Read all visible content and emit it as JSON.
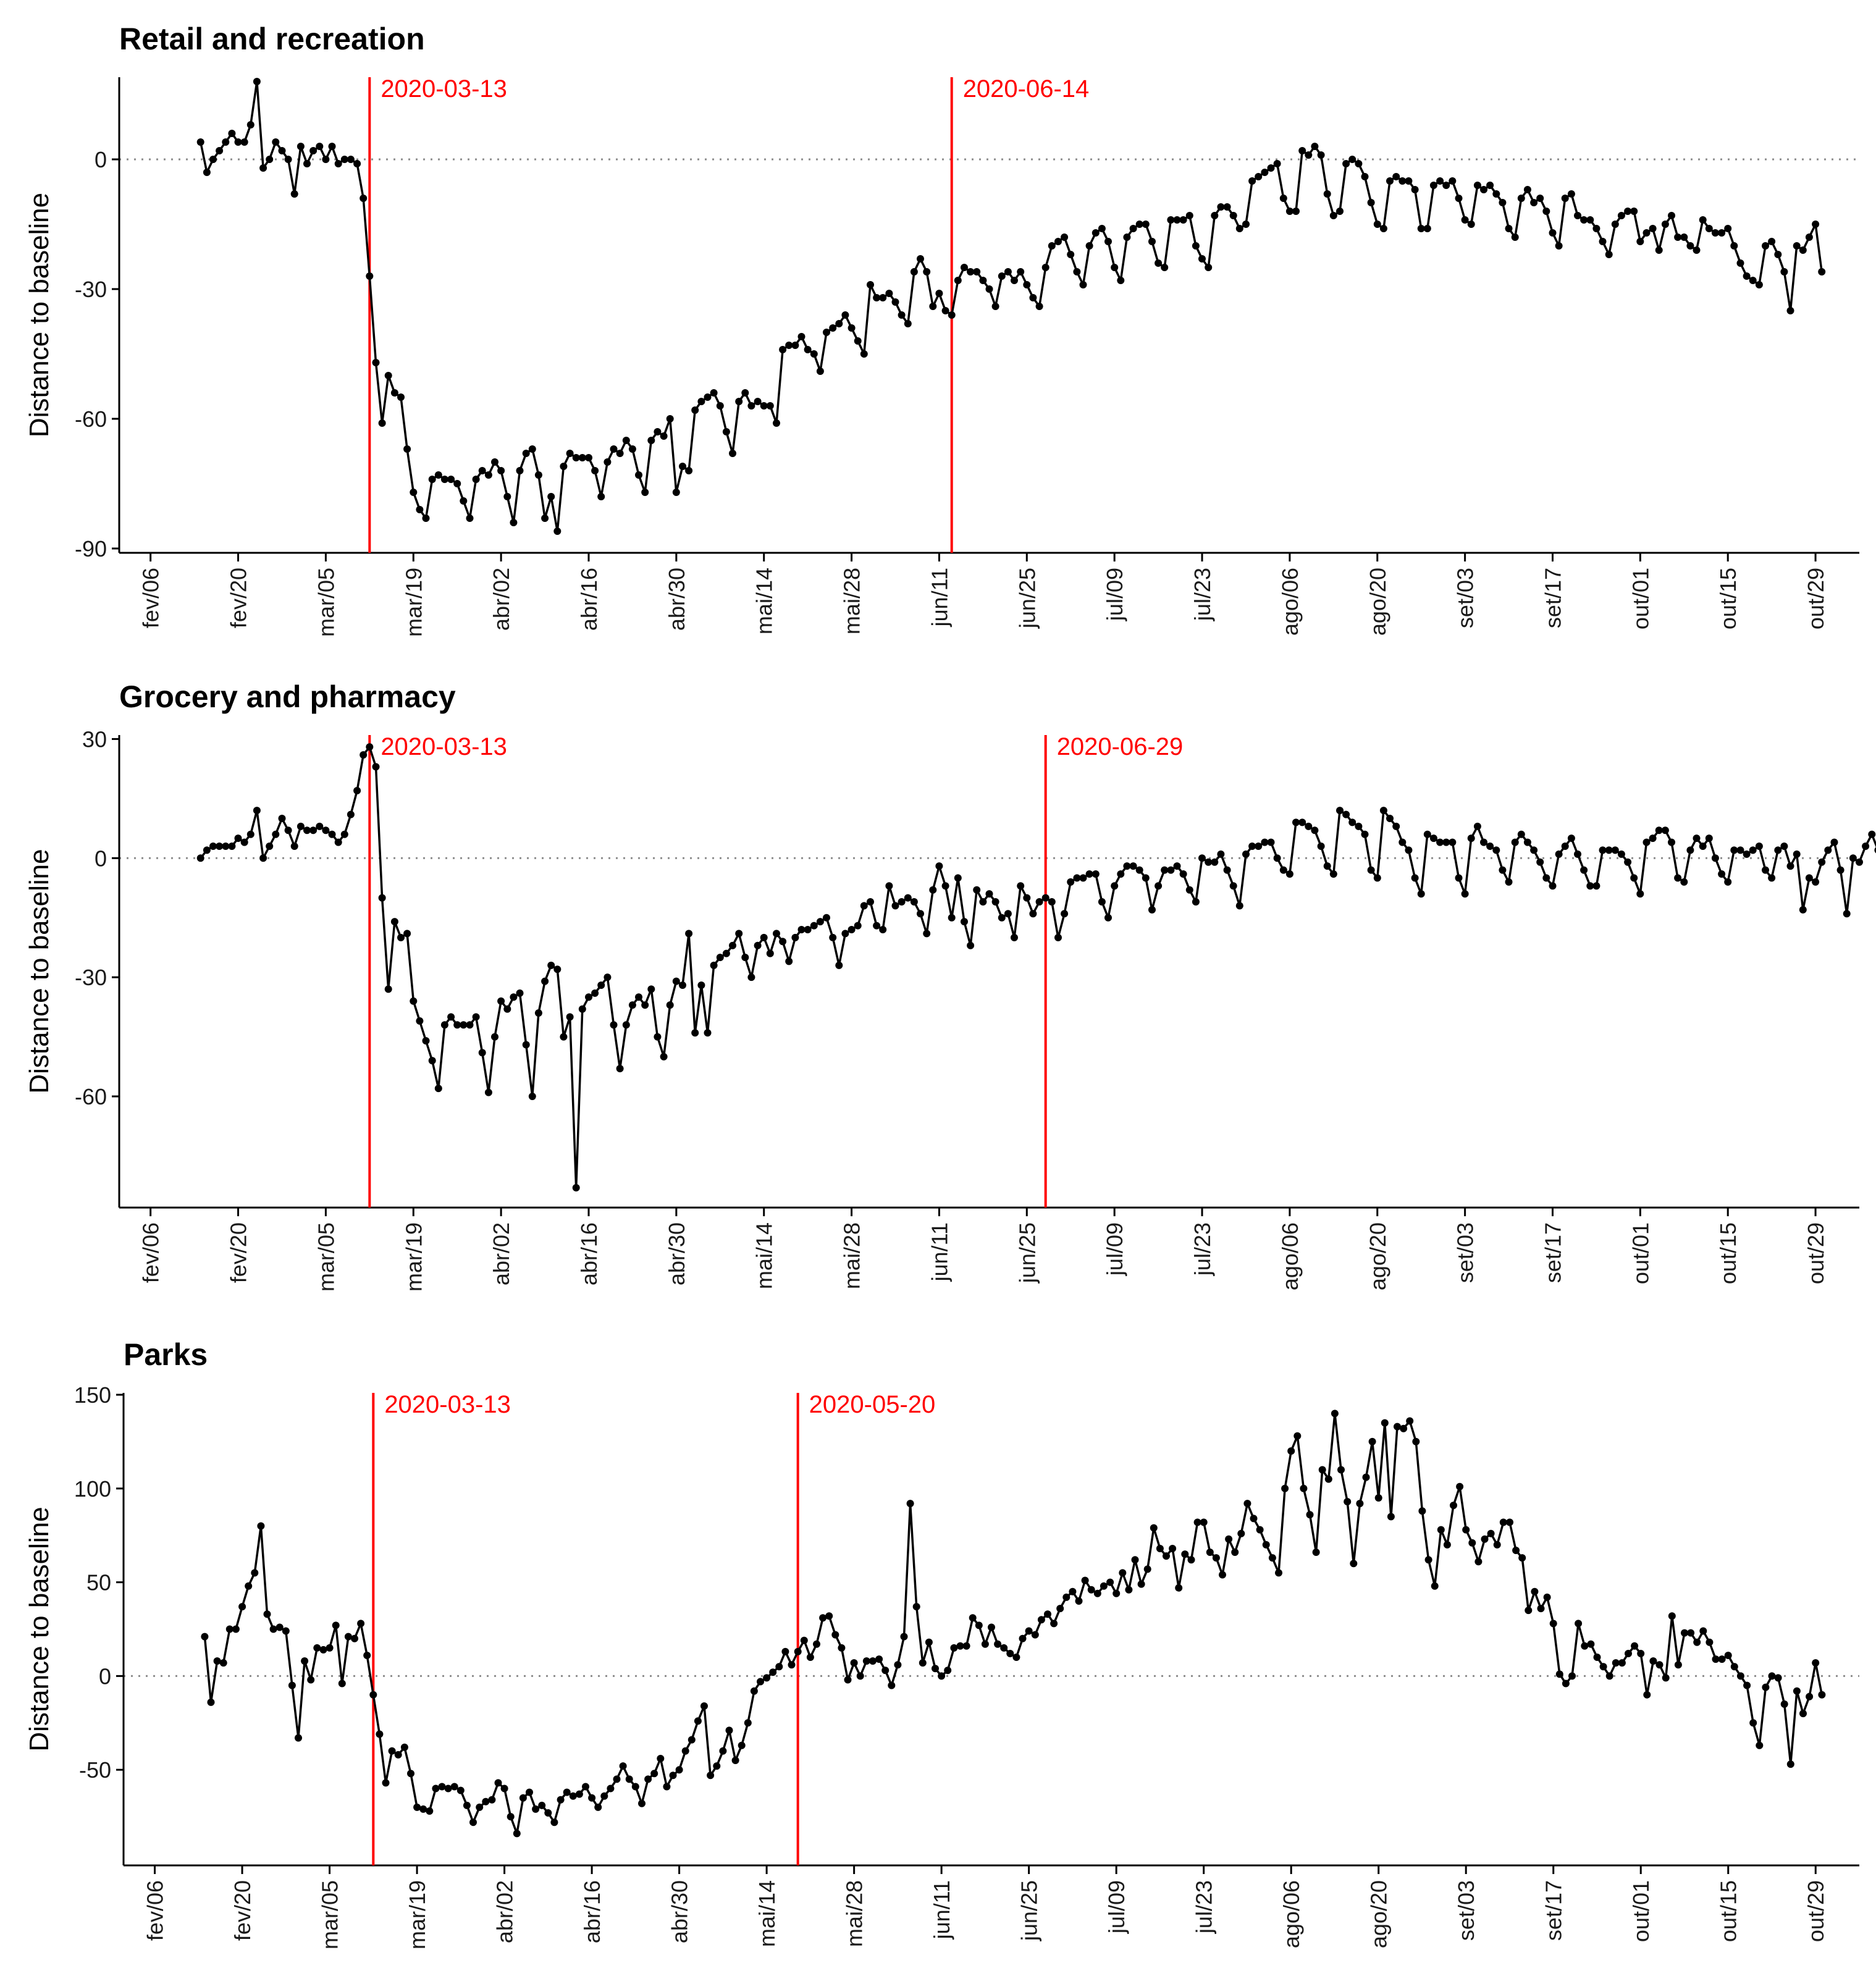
{
  "figure": {
    "colors": {
      "line": "#000000",
      "event": "#ff0000",
      "axis": "#000000",
      "zero_line": "#8c8c8c"
    }
  },
  "chart_data": [
    {
      "type": "line",
      "title": "Retail and recreation",
      "xlabel": "",
      "ylabel": "Distance to baseline",
      "x_start": "2020-02-15",
      "xlim_days": [
        -13,
        265
      ],
      "ylim": [
        -91,
        19
      ],
      "yticks": [
        0,
        -30,
        -60,
        -90
      ],
      "ytick_labels": [
        "0",
        "-30",
        "-60",
        "-90"
      ],
      "xtick_days": [
        -8,
        6,
        20,
        34,
        48,
        62,
        76,
        90,
        104,
        118,
        132,
        146,
        160,
        174,
        188,
        202,
        216,
        230,
        244,
        258
      ],
      "xtick_labels": [
        "fev/06",
        "fev/20",
        "mar/05",
        "mar/19",
        "abr/02",
        "abr/16",
        "abr/30",
        "mai/14",
        "mai/28",
        "jun/11",
        "jun/25",
        "jul/09",
        "jul/23",
        "ago/06",
        "ago/20",
        "set/03",
        "set/17",
        "out/01",
        "out/15",
        "out/29"
      ],
      "events": [
        {
          "day": 27,
          "label": "2020-03-13"
        },
        {
          "day": 120,
          "label": "2020-06-14"
        }
      ],
      "values": [
        4,
        -3,
        0,
        2,
        4,
        6,
        4,
        4,
        8,
        18,
        -2,
        0,
        4,
        2,
        0,
        -8,
        3,
        -1,
        2,
        3,
        0,
        3,
        -1,
        0,
        0,
        -1,
        -9,
        -27,
        -47,
        -61,
        -50,
        -54,
        -55,
        -67,
        -77,
        -81,
        -83,
        -74,
        -73,
        -74,
        -74,
        -75,
        -79,
        -83,
        -74,
        -72,
        -73,
        -70,
        -72,
        -78,
        -84,
        -72,
        -68,
        -67,
        -73,
        -83,
        -78,
        -86,
        -71,
        -68,
        -69,
        -69,
        -69,
        -72,
        -78,
        -70,
        -67,
        -68,
        -65,
        -67,
        -73,
        -77,
        -65,
        -63,
        -64,
        -60,
        -77,
        -71,
        -72,
        -58,
        -56,
        -55,
        -54,
        -57,
        -63,
        -68,
        -56,
        -54,
        -57,
        -56,
        -57,
        -57,
        -61,
        -44,
        -43,
        -43,
        -41,
        -44,
        -45,
        -49,
        -40,
        -39,
        -38,
        -36,
        -39,
        -42,
        -45,
        -29,
        -32,
        -32,
        -31,
        -33,
        -36,
        -38,
        -26,
        -23,
        -26,
        -34,
        -31,
        -35,
        -36,
        -28,
        -25,
        -26,
        -26,
        -28,
        -30,
        -34,
        -27,
        -26,
        -28,
        -26,
        -29,
        -32,
        -34,
        -25,
        -20,
        -19,
        -18,
        -22,
        -26,
        -29,
        -20,
        -17,
        -16,
        -19,
        -25,
        -28,
        -18,
        -16,
        -15,
        -15,
        -19,
        -24,
        -25,
        -14,
        -14,
        -14,
        -13,
        -20,
        -23,
        -25,
        -13,
        -11,
        -11,
        -13,
        -16,
        -15,
        -5,
        -4,
        -3,
        -2,
        -1,
        -9,
        -12,
        -12,
        2,
        1,
        3,
        1,
        -8,
        -13,
        -12,
        -1,
        0,
        -1,
        -4,
        -10,
        -15,
        -16,
        -5,
        -4,
        -5,
        -5,
        -7,
        -16,
        -16,
        -6,
        -5,
        -6,
        -5,
        -9,
        -14,
        -15,
        -6,
        -7,
        -6,
        -8,
        -10,
        -16,
        -18,
        -9,
        -7,
        -10,
        -9,
        -12,
        -17,
        -20,
        -9,
        -8,
        -13,
        -14,
        -14,
        -16,
        -19,
        -22,
        -15,
        -13,
        -12,
        -12,
        -19,
        -17,
        -16,
        -21,
        -15,
        -13,
        -18,
        -18,
        -20,
        -21,
        -14,
        -16,
        -17,
        -17,
        -16,
        -20,
        -24,
        -27,
        -28,
        -29,
        -20,
        -19,
        -22,
        -26,
        -35,
        -20,
        -21,
        -18,
        -15,
        -26
      ]
    },
    {
      "type": "line",
      "title": "Grocery and pharmacy",
      "xlabel": "",
      "ylabel": "Distance to baseline",
      "x_start": "2020-02-15",
      "xlim_days": [
        -13,
        265
      ],
      "ylim": [
        -88,
        31
      ],
      "yticks": [
        30,
        0,
        -30,
        -60
      ],
      "ytick_labels": [
        "30",
        "0",
        "-30",
        "-60"
      ],
      "xtick_days": [
        -8,
        6,
        20,
        34,
        48,
        62,
        76,
        90,
        104,
        118,
        132,
        146,
        160,
        174,
        188,
        202,
        216,
        230,
        244,
        258
      ],
      "xtick_labels": [
        "fev/06",
        "fev/20",
        "mar/05",
        "mar/19",
        "abr/02",
        "abr/16",
        "abr/30",
        "mai/14",
        "mai/28",
        "jun/11",
        "jun/25",
        "jul/09",
        "jul/23",
        "ago/06",
        "ago/20",
        "set/03",
        "set/17",
        "out/01",
        "out/15",
        "out/29"
      ],
      "events": [
        {
          "day": 27,
          "label": "2020-03-13"
        },
        {
          "day": 135,
          "label": "2020-06-29"
        }
      ],
      "values": [
        0,
        2,
        3,
        3,
        3,
        3,
        5,
        4,
        6,
        12,
        0,
        3,
        6,
        10,
        7,
        3,
        8,
        7,
        7,
        8,
        7,
        6,
        4,
        6,
        11,
        17,
        26,
        28,
        23,
        -10,
        -33,
        -16,
        -20,
        -19,
        -36,
        -41,
        -46,
        -51,
        -58,
        -42,
        -40,
        -42,
        -42,
        -42,
        -40,
        -49,
        -59,
        -45,
        -36,
        -38,
        -35,
        -34,
        -47,
        -60,
        -39,
        -31,
        -27,
        -28,
        -45,
        -40,
        -83,
        -38,
        -35,
        -34,
        -32,
        -30,
        -42,
        -53,
        -42,
        -37,
        -35,
        -37,
        -33,
        -45,
        -50,
        -37,
        -31,
        -32,
        -19,
        -44,
        -32,
        -44,
        -27,
        -25,
        -24,
        -22,
        -19,
        -25,
        -30,
        -22,
        -20,
        -24,
        -19,
        -21,
        -26,
        -20,
        -18,
        -18,
        -17,
        -16,
        -15,
        -20,
        -27,
        -19,
        -18,
        -17,
        -12,
        -11,
        -17,
        -18,
        -7,
        -12,
        -11,
        -10,
        -11,
        -14,
        -19,
        -8,
        -2,
        -7,
        -15,
        -5,
        -16,
        -22,
        -8,
        -11,
        -9,
        -11,
        -15,
        -14,
        -20,
        -7,
        -10,
        -14,
        -11,
        -10,
        -11,
        -20,
        -14,
        -6,
        -5,
        -5,
        -4,
        -4,
        -11,
        -15,
        -7,
        -4,
        -2,
        -2,
        -3,
        -5,
        -13,
        -7,
        -3,
        -3,
        -2,
        -4,
        -8,
        -11,
        0,
        -1,
        -1,
        1,
        -3,
        -7,
        -12,
        1,
        3,
        3,
        4,
        4,
        0,
        -3,
        -4,
        9,
        9,
        8,
        7,
        3,
        -2,
        -4,
        12,
        11,
        9,
        8,
        6,
        -3,
        -5,
        12,
        10,
        8,
        4,
        2,
        -5,
        -9,
        6,
        5,
        4,
        4,
        4,
        -5,
        -9,
        5,
        8,
        4,
        3,
        2,
        -3,
        -6,
        4,
        6,
        4,
        2,
        -1,
        -5,
        -7,
        1,
        3,
        5,
        1,
        -3,
        -7,
        -7,
        2,
        2,
        2,
        1,
        -1,
        -5,
        -9,
        4,
        5,
        7,
        7,
        4,
        -5,
        -6,
        2,
        5,
        3,
        5,
        0,
        -4,
        -6,
        2,
        2,
        1,
        2,
        3,
        -3,
        -5,
        2,
        3,
        -2,
        1,
        -13,
        -5,
        -6,
        -1,
        2,
        4,
        -3,
        -14,
        0,
        -1,
        3,
        6,
        2
      ]
    },
    {
      "type": "line",
      "title": "Parks",
      "xlabel": "",
      "ylabel": "Distance to baseline",
      "x_start": "2020-02-15",
      "xlim_days": [
        -13,
        265
      ],
      "ylim": [
        -101,
        151
      ],
      "yticks": [
        150,
        100,
        50,
        0,
        -50
      ],
      "ytick_labels": [
        "150",
        "100",
        "50",
        "0",
        "-50"
      ],
      "xtick_days": [
        -8,
        6,
        20,
        34,
        48,
        62,
        76,
        90,
        104,
        118,
        132,
        146,
        160,
        174,
        188,
        202,
        216,
        230,
        244,
        258
      ],
      "xtick_labels": [
        "fev/06",
        "fev/20",
        "mar/05",
        "mar/19",
        "abr/02",
        "abr/16",
        "abr/30",
        "mai/14",
        "mai/28",
        "jun/11",
        "jun/25",
        "jul/09",
        "jul/23",
        "ago/06",
        "ago/20",
        "set/03",
        "set/17",
        "out/01",
        "out/15",
        "out/29"
      ],
      "events": [
        {
          "day": 27,
          "label": "2020-03-13"
        },
        {
          "day": 95,
          "label": "2020-05-20"
        }
      ],
      "values": [
        21,
        -14,
        8,
        7,
        25,
        25,
        37,
        48,
        55,
        80,
        33,
        25,
        26,
        24,
        -5,
        -33,
        8,
        -2,
        15,
        14,
        15,
        27,
        -4,
        21,
        20,
        28,
        11,
        -10,
        -31,
        -57,
        -40,
        -42,
        -38,
        -52,
        -70,
        -71,
        -72,
        -60,
        -59,
        -60,
        -59,
        -61,
        -69,
        -78,
        -70,
        -67,
        -66,
        -57,
        -60,
        -75,
        -84,
        -65,
        -62,
        -71,
        -69,
        -73,
        -78,
        -66,
        -62,
        -64,
        -63,
        -59,
        -65,
        -70,
        -64,
        -60,
        -55,
        -48,
        -55,
        -59,
        -68,
        -55,
        -52,
        -44,
        -59,
        -53,
        -50,
        -40,
        -34,
        -24,
        -16,
        -53,
        -48,
        -40,
        -29,
        -45,
        -37,
        -25,
        -8,
        -3,
        -1,
        2,
        5,
        13,
        6,
        13,
        19,
        10,
        17,
        31,
        32,
        22,
        15,
        -2,
        7,
        0,
        8,
        8,
        9,
        3,
        -5,
        6,
        21,
        92,
        37,
        7,
        18,
        4,
        0,
        3,
        15,
        16,
        16,
        31,
        27,
        17,
        26,
        17,
        15,
        12,
        10,
        20,
        24,
        22,
        30,
        33,
        28,
        36,
        42,
        45,
        40,
        51,
        46,
        44,
        48,
        50,
        44,
        55,
        46,
        62,
        49,
        57,
        79,
        68,
        64,
        68,
        47,
        65,
        62,
        82,
        82,
        66,
        63,
        54,
        73,
        66,
        76,
        92,
        84,
        78,
        70,
        63,
        55,
        100,
        120,
        128,
        100,
        86,
        66,
        110,
        105,
        140,
        110,
        93,
        60,
        92,
        106,
        125,
        95,
        135,
        85,
        133,
        132,
        136,
        125,
        88,
        62,
        48,
        78,
        70,
        91,
        101,
        78,
        71,
        61,
        73,
        76,
        70,
        82,
        82,
        67,
        63,
        35,
        45,
        36,
        42,
        28,
        1,
        -4,
        0,
        28,
        16,
        17,
        10,
        5,
        0,
        7,
        7,
        12,
        16,
        12,
        -10,
        8,
        6,
        -1,
        32,
        6,
        23,
        23,
        18,
        24,
        18,
        9,
        9,
        11,
        5,
        0,
        -5,
        -25,
        -37,
        -6,
        0,
        -1,
        -15,
        -47,
        -8,
        -20,
        -11,
        7,
        -10
      ]
    }
  ]
}
